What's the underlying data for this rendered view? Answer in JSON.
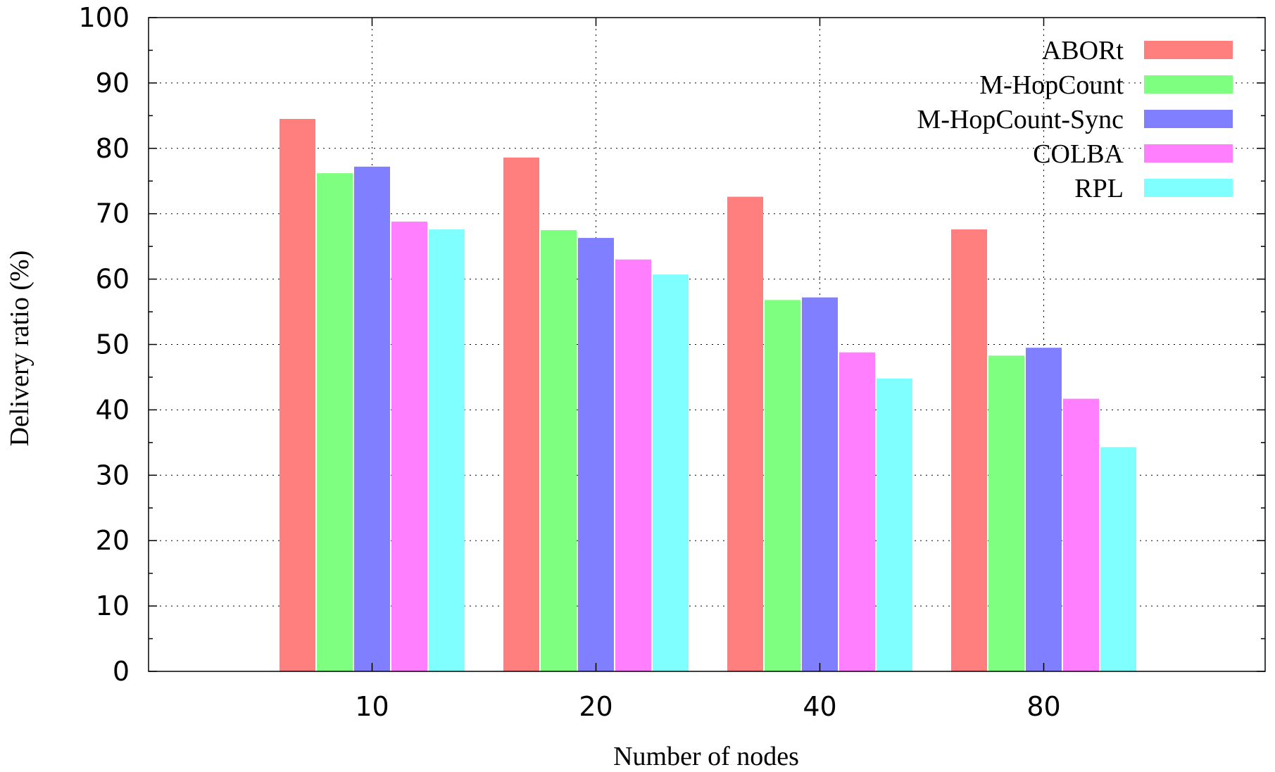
{
  "chart_data": {
    "type": "bar",
    "categories": [
      "10",
      "20",
      "40",
      "80"
    ],
    "series": [
      {
        "name": "ABORt",
        "color": "#ff7f7f",
        "values": [
          84.5,
          78.6,
          72.6,
          67.6
        ]
      },
      {
        "name": "M-HopCount",
        "color": "#7fff7f",
        "values": [
          76.2,
          67.5,
          56.8,
          48.3
        ]
      },
      {
        "name": "M-HopCount-Sync",
        "color": "#7f7fff",
        "values": [
          77.2,
          66.3,
          57.2,
          49.5
        ]
      },
      {
        "name": "COLBA",
        "color": "#ff7fff",
        "values": [
          68.8,
          63.0,
          48.8,
          41.7
        ]
      },
      {
        "name": "RPL",
        "color": "#7fffff",
        "values": [
          67.6,
          60.7,
          44.8,
          34.3
        ]
      }
    ],
    "xlabel": "Number of nodes",
    "ylabel": "Delivery ratio (%)",
    "ylim": [
      0,
      100
    ],
    "yticks": [
      "0",
      "10",
      "20",
      "30",
      "40",
      "50",
      "60",
      "70",
      "80",
      "90",
      "100"
    ],
    "grid": true,
    "legend_position": "top-right"
  }
}
